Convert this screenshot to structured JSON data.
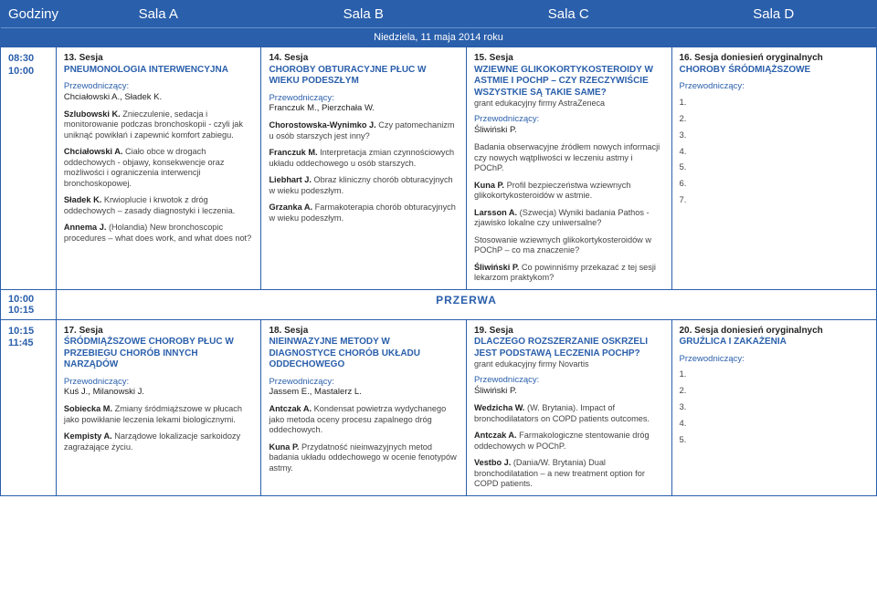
{
  "header": {
    "time": "Godziny",
    "a": "Sala A",
    "b": "Sala B",
    "c": "Sala C",
    "d": "Sala D"
  },
  "date_bar": "Niedziela, 11 maja 2014 roku",
  "break": {
    "time1": "10:00",
    "time2": "10:15",
    "label": "PRZERWA"
  },
  "slot1": {
    "time1": "08:30",
    "time2": "10:00",
    "a": {
      "no": "13. Sesja",
      "title": "PNEUMONOLOGIA INTERWENCYJNA",
      "chair_lbl": "Przewodniczący:",
      "chairs": "Chciałowski A., Sładek K.",
      "talks": [
        {
          "author": "Szlubowski K.",
          "text": "Znieczulenie, sedacja i monitorowanie podczas bronchoskopii - czyli jak uniknąć powikłań i zapewnić komfort zabiegu."
        },
        {
          "author": "Chciałowski A.",
          "text": "Ciało obce w drogach oddechowych - objawy, konsekwencje oraz możliwości i ograniczenia interwencji bronchoskopowej."
        },
        {
          "author": "Sładek K.",
          "text": "Krwioplucie i krwotok z dróg oddechowych – zasady diagnostyki i leczenia."
        },
        {
          "author": "Annema J.",
          "text": "(Holandia) New bronchoscopic procedures – what does work, and what does not?"
        }
      ]
    },
    "b": {
      "no": "14. Sesja",
      "title": "CHOROBY OBTURACYJNE PŁUC W WIEKU PODESZŁYM",
      "chair_lbl": "Przewodniczący:",
      "chairs": "Franczuk M., Pierzchała W.",
      "talks": [
        {
          "author": "Chorostowska-Wynimko J.",
          "text": "Czy patomechanizm u osób starszych jest inny?"
        },
        {
          "author": "Franczuk M.",
          "text": "Interpretacja zmian czynnościowych układu oddechowego u osób starszych."
        },
        {
          "author": "Liebhart J.",
          "text": "Obraz kliniczny chorób obturacyjnych w wieku podeszłym."
        },
        {
          "author": "Grzanka A.",
          "text": "Farmakoterapia chorób obturacyjnych w wieku podeszłym."
        }
      ]
    },
    "c": {
      "no": "15. Sesja",
      "title": "WZIEWNE GLIKOKORTYKOSTEROIDY W ASTMIE I POChP – CZY RZECZYWIŚCIE WSZYSTKIE SĄ TAKIE SAME?",
      "grant": "grant edukacyjny firmy AstraZeneca",
      "chair_lbl": "Przewodniczący:",
      "chairs": "Śliwiński P.",
      "talks": [
        {
          "author": "",
          "text": "Badania obserwacyjne źródłem nowych informacji czy nowych wątpliwości w leczeniu astmy i POChP."
        },
        {
          "author": "Kuna P.",
          "text": "Profil bezpieczeństwa wziewnych glikokortykosteroidów w astmie."
        },
        {
          "author": "Larsson A.",
          "text": "(Szwecja) Wyniki badania Pathos - zjawisko lokalne czy uniwersalne?"
        },
        {
          "author": "",
          "text": "Stosowanie wziewnych glikokortykosteroidów w POChP – co ma znaczenie?"
        },
        {
          "author": "Śliwiński P.",
          "text": "Co powinniśmy przekazać z tej sesji lekarzom praktykom?"
        }
      ]
    },
    "d": {
      "no": "16. Sesja doniesień oryginalnych",
      "title": "CHOROBY ŚRÓDMIĄŻSZOWE",
      "chair_lbl": "Przewodniczący:",
      "items": [
        "1.",
        "2.",
        "3.",
        "4.",
        "5.",
        "6.",
        "7."
      ]
    }
  },
  "slot2": {
    "time1": "10:15",
    "time2": "11:45",
    "a": {
      "no": "17. Sesja",
      "title": "ŚRÓDMIĄŻSZOWE CHOROBY PŁUC W PRZEBIEGU CHORÓB INNYCH NARZĄDÓW",
      "chair_lbl": "Przewodniczący:",
      "chairs": "Kuś J., Milanowski J.",
      "talks": [
        {
          "author": "Sobiecka M.",
          "text": "Zmiany śródmiąższowe w płucach jako powikłanie leczenia lekami biologicznymi."
        },
        {
          "author": "Kempisty A.",
          "text": "Narządowe lokalizacje sarkoidozy zagrażające życiu."
        }
      ]
    },
    "b": {
      "no": "18. Sesja",
      "title": "NIEINWAZYJNE METODY W DIAGNOSTYCE CHORÓB UKŁADU ODDECHOWEGO",
      "chair_lbl": "Przewodniczący:",
      "chairs": "Jassem E., Mastalerz L.",
      "talks": [
        {
          "author": "Antczak A.",
          "text": "Kondensat powietrza wydychanego jako metoda oceny procesu zapalnego dróg oddechowych."
        },
        {
          "author": "Kuna P.",
          "text": "Przydatność nieinwazyjnych metod badania układu oddechowego w ocenie fenotypów astmy."
        }
      ]
    },
    "c": {
      "no": "19. Sesja",
      "title": "DLACZEGO ROZSZERZANIE OSKRZELI JEST PODSTAWĄ LECZENIA POCHP?",
      "grant": "grant edukacyjny firmy Novartis",
      "chair_lbl": "Przewodniczący:",
      "chairs": "Śliwiński P.",
      "talks": [
        {
          "author": "Wedzicha W.",
          "text": "(W. Brytania). Impact of bronchodilatators on COPD patients outcomes."
        },
        {
          "author": "Antczak A.",
          "text": "Farmakologiczne stentowanie dróg oddechowych w POChP."
        },
        {
          "author": "Vestbo J.",
          "text": "(Dania/W. Brytania) Dual bronchodilatation – a new treatment option for COPD patients."
        }
      ]
    },
    "d": {
      "no": "20. Sesja doniesień oryginalnych",
      "title": "GRUŹLICA I ZAKAŻENIA",
      "chair_lbl": "Przewodniczący:",
      "items": [
        "1.",
        "2.",
        "3.",
        "4.",
        "5."
      ]
    }
  }
}
